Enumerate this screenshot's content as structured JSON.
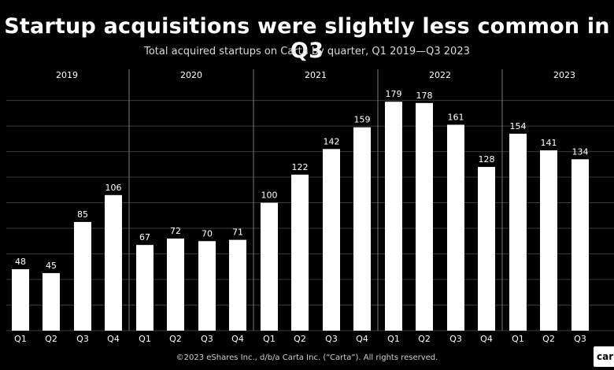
{
  "title": "Startup acquisitions were slightly less common in Q3",
  "subtitle": "Total acquired startups on Carta by quarter, Q1 2019—Q3 2023",
  "footer": "©2023 eShares Inc., d/b/a Carta Inc. (“Carta”). All rights reserved.",
  "logo_text": "car",
  "colors": {
    "background": "#000000",
    "bar": "#ffffff",
    "grid": "#3a3a3a",
    "divider": "#7a7a7a"
  },
  "chart_data": {
    "type": "bar",
    "title": "Startup acquisitions were slightly less common in Q3",
    "subtitle": "Total acquired startups on Carta by quarter, Q1 2019—Q3 2023",
    "xlabel": "",
    "ylabel": "",
    "ylim": [
      0,
      200
    ],
    "grid": true,
    "legend": "none",
    "groups": [
      {
        "year": "2019",
        "quarters": [
          "Q1",
          "Q2",
          "Q3",
          "Q4"
        ],
        "values": [
          48,
          45,
          85,
          106
        ]
      },
      {
        "year": "2020",
        "quarters": [
          "Q1",
          "Q2",
          "Q3",
          "Q4"
        ],
        "values": [
          67,
          72,
          70,
          71
        ]
      },
      {
        "year": "2021",
        "quarters": [
          "Q1",
          "Q2",
          "Q3",
          "Q4"
        ],
        "values": [
          100,
          122,
          142,
          159
        ]
      },
      {
        "year": "2022",
        "quarters": [
          "Q1",
          "Q2",
          "Q3",
          "Q4"
        ],
        "values": [
          179,
          178,
          161,
          128
        ]
      },
      {
        "year": "2023",
        "quarters": [
          "Q1",
          "Q2",
          "Q3"
        ],
        "values": [
          154,
          141,
          134
        ]
      }
    ]
  }
}
